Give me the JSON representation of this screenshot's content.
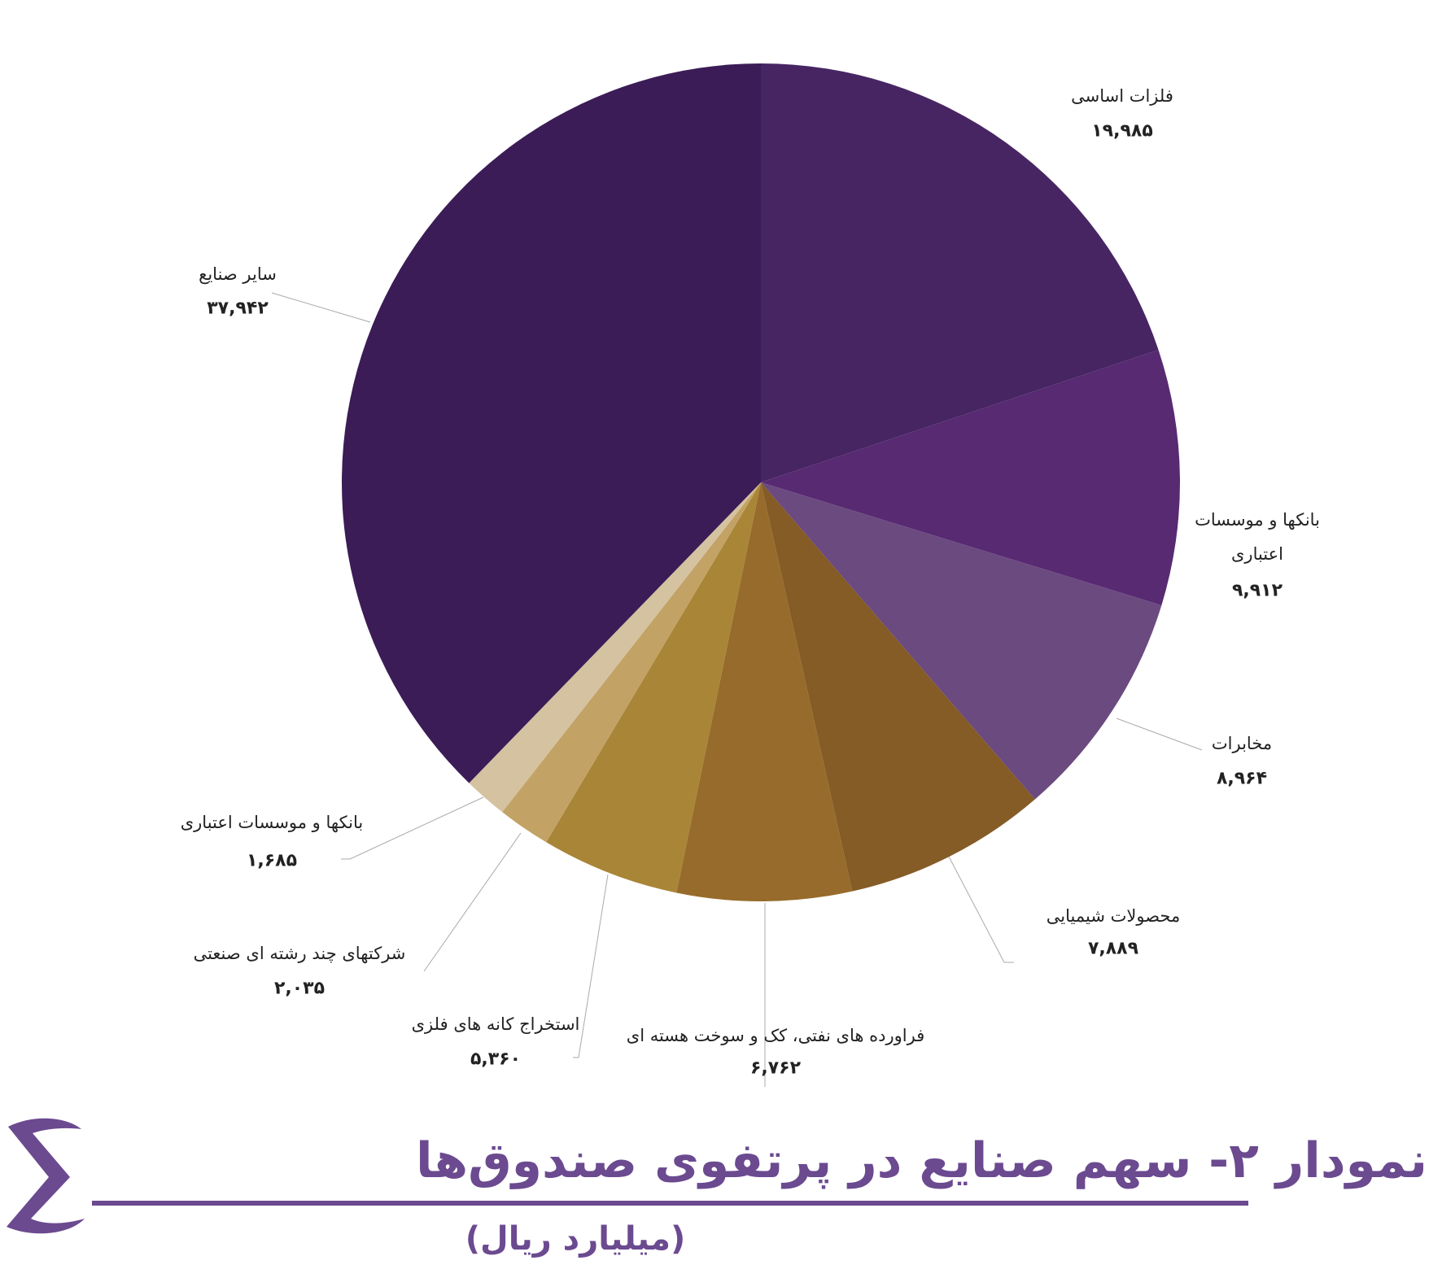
{
  "chart_data": {
    "type": "pie",
    "title": "نمودار ۲- سهم صنایع در پرتفوی صندوق‌ها",
    "subtitle": "(میلیارد ریال)",
    "categories": [
      "فلزات اساسی",
      "بانکها و موسسات اعتباری",
      "مخابرات",
      "محصولات شیمیایی",
      "فراورده های نفتی، کک و سوخت هسته ای",
      "استخراج کانه های فلزی",
      "شرکتهای چند رشته ای صنعتی",
      "بانکها و موسسات اعتباری",
      "سایر صنایع"
    ],
    "values": [
      19985,
      9912,
      8964,
      7889,
      6762,
      5360,
      2035,
      1685,
      37942
    ],
    "value_labels": [
      "۱۹,۹۸۵",
      "۹,۹۱۲",
      "۸,۹۶۴",
      "۷,۸۸۹",
      "۶,۷۶۲",
      "۵,۳۶۰",
      "۲,۰۳۵",
      "۱,۶۸۵",
      "۳۷,۹۴۲"
    ],
    "colors": [
      "#472562",
      "#582a72",
      "#6b4a80",
      "#855b26",
      "#976b2b",
      "#a98537",
      "#c2a265",
      "#d4c2a0",
      "#3b1c56"
    ]
  }
}
